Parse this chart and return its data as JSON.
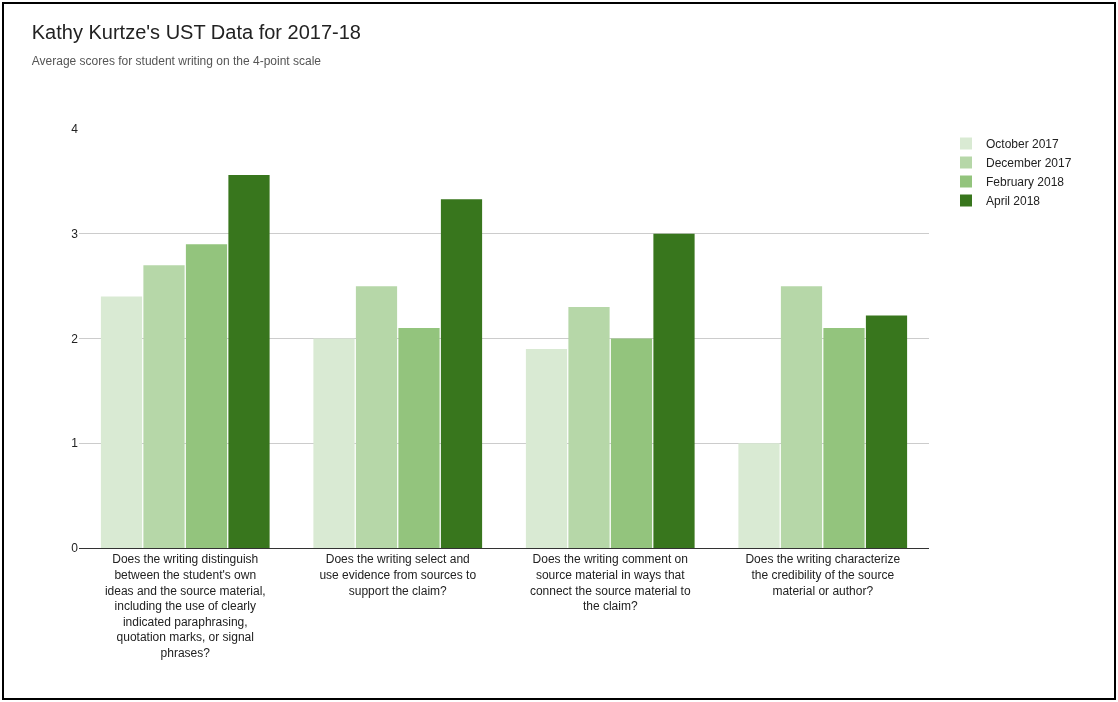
{
  "chart_data": {
    "type": "bar",
    "title": "Kathy Kurtze's UST Data for 2017-18",
    "subtitle": "Average scores for student writing on the 4-point scale",
    "categories": [
      "Does the writing distinguish between the student's own ideas and the source material, including the use of clearly indicated paraphrasing, quotation marks, or signal phrases?",
      "Does the writing select and use evidence from sources to support the claim?",
      "Does the writing comment on source material in ways that connect the source material to the claim?",
      "Does the writing characterize the credibility of the source material or author?"
    ],
    "series": [
      {
        "name": "October 2017",
        "color": "#d9ead3",
        "values": [
          2.4,
          2.0,
          1.9,
          1.0
        ]
      },
      {
        "name": "December 2017",
        "color": "#b6d7a8",
        "values": [
          2.7,
          2.5,
          2.3,
          2.5
        ]
      },
      {
        "name": "February 2018",
        "color": "#93c47d",
        "values": [
          2.9,
          2.1,
          2.0,
          2.1
        ]
      },
      {
        "name": "April 2018",
        "color": "#38761d",
        "values": [
          3.56,
          3.33,
          3.0,
          2.22
        ]
      }
    ],
    "ylim": [
      0,
      4
    ],
    "yticks": [
      0,
      1,
      2,
      3,
      4
    ],
    "grid": "y",
    "legend": "top right"
  }
}
